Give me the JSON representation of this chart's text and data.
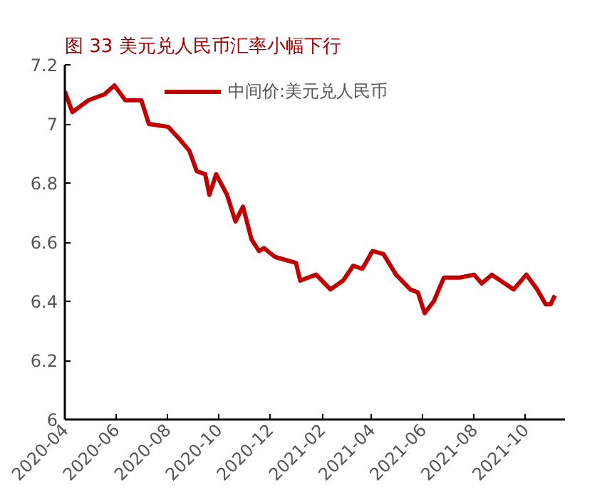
{
  "chart_data": {
    "type": "line",
    "title": "图 33   美元兑人民币汇率小幅下行",
    "x": [
      "2020-04-01",
      "2020-04-10",
      "2020-04-29",
      "2020-05-18",
      "2020-05-30",
      "2020-06-12",
      "2020-07-01",
      "2020-07-10",
      "2020-08-02",
      "2020-08-15",
      "2020-08-27",
      "2020-09-05",
      "2020-09-15",
      "2020-09-20",
      "2020-09-28",
      "2020-10-11",
      "2020-10-21",
      "2020-10-30",
      "2020-11-09",
      "2020-11-18",
      "2020-11-24",
      "2020-12-07",
      "2021-01-01",
      "2021-01-06",
      "2021-01-25",
      "2021-02-11",
      "2021-02-26",
      "2021-03-10",
      "2021-03-21",
      "2021-04-02",
      "2021-04-15",
      "2021-04-30",
      "2021-05-17",
      "2021-05-26",
      "2021-06-03",
      "2021-06-14",
      "2021-06-26",
      "2021-07-15",
      "2021-08-01",
      "2021-08-10",
      "2021-08-22",
      "2021-09-17",
      "2021-10-02",
      "2021-10-15",
      "2021-10-25",
      "2021-10-31",
      "2021-11-05"
    ],
    "series": [
      {
        "name": "中间价:美元兑人民币",
        "color": "#c00000",
        "values": [
          7.11,
          7.04,
          7.08,
          7.1,
          7.13,
          7.08,
          7.08,
          7.0,
          6.99,
          6.95,
          6.91,
          6.84,
          6.83,
          6.76,
          6.83,
          6.76,
          6.67,
          6.72,
          6.61,
          6.57,
          6.58,
          6.55,
          6.53,
          6.47,
          6.49,
          6.44,
          6.47,
          6.52,
          6.51,
          6.57,
          6.56,
          6.49,
          6.44,
          6.43,
          6.36,
          6.4,
          6.48,
          6.48,
          6.49,
          6.46,
          6.49,
          6.44,
          6.49,
          6.44,
          6.39,
          6.39,
          6.42
        ]
      }
    ],
    "xlim": [
      "2020-04-01",
      "2021-11-17"
    ],
    "xticks": [
      "2020-04",
      "2020-06",
      "2020-08",
      "2020-10",
      "2020-12",
      "2021-02",
      "2021-04",
      "2021-06",
      "2021-08",
      "2021-10"
    ],
    "ylim": [
      6,
      7.2
    ],
    "yticks": [
      6,
      6.2,
      6.4,
      6.6,
      6.8,
      7,
      7.2
    ],
    "legend": "top",
    "grid": false,
    "marker": "none",
    "line_style": "solid"
  }
}
